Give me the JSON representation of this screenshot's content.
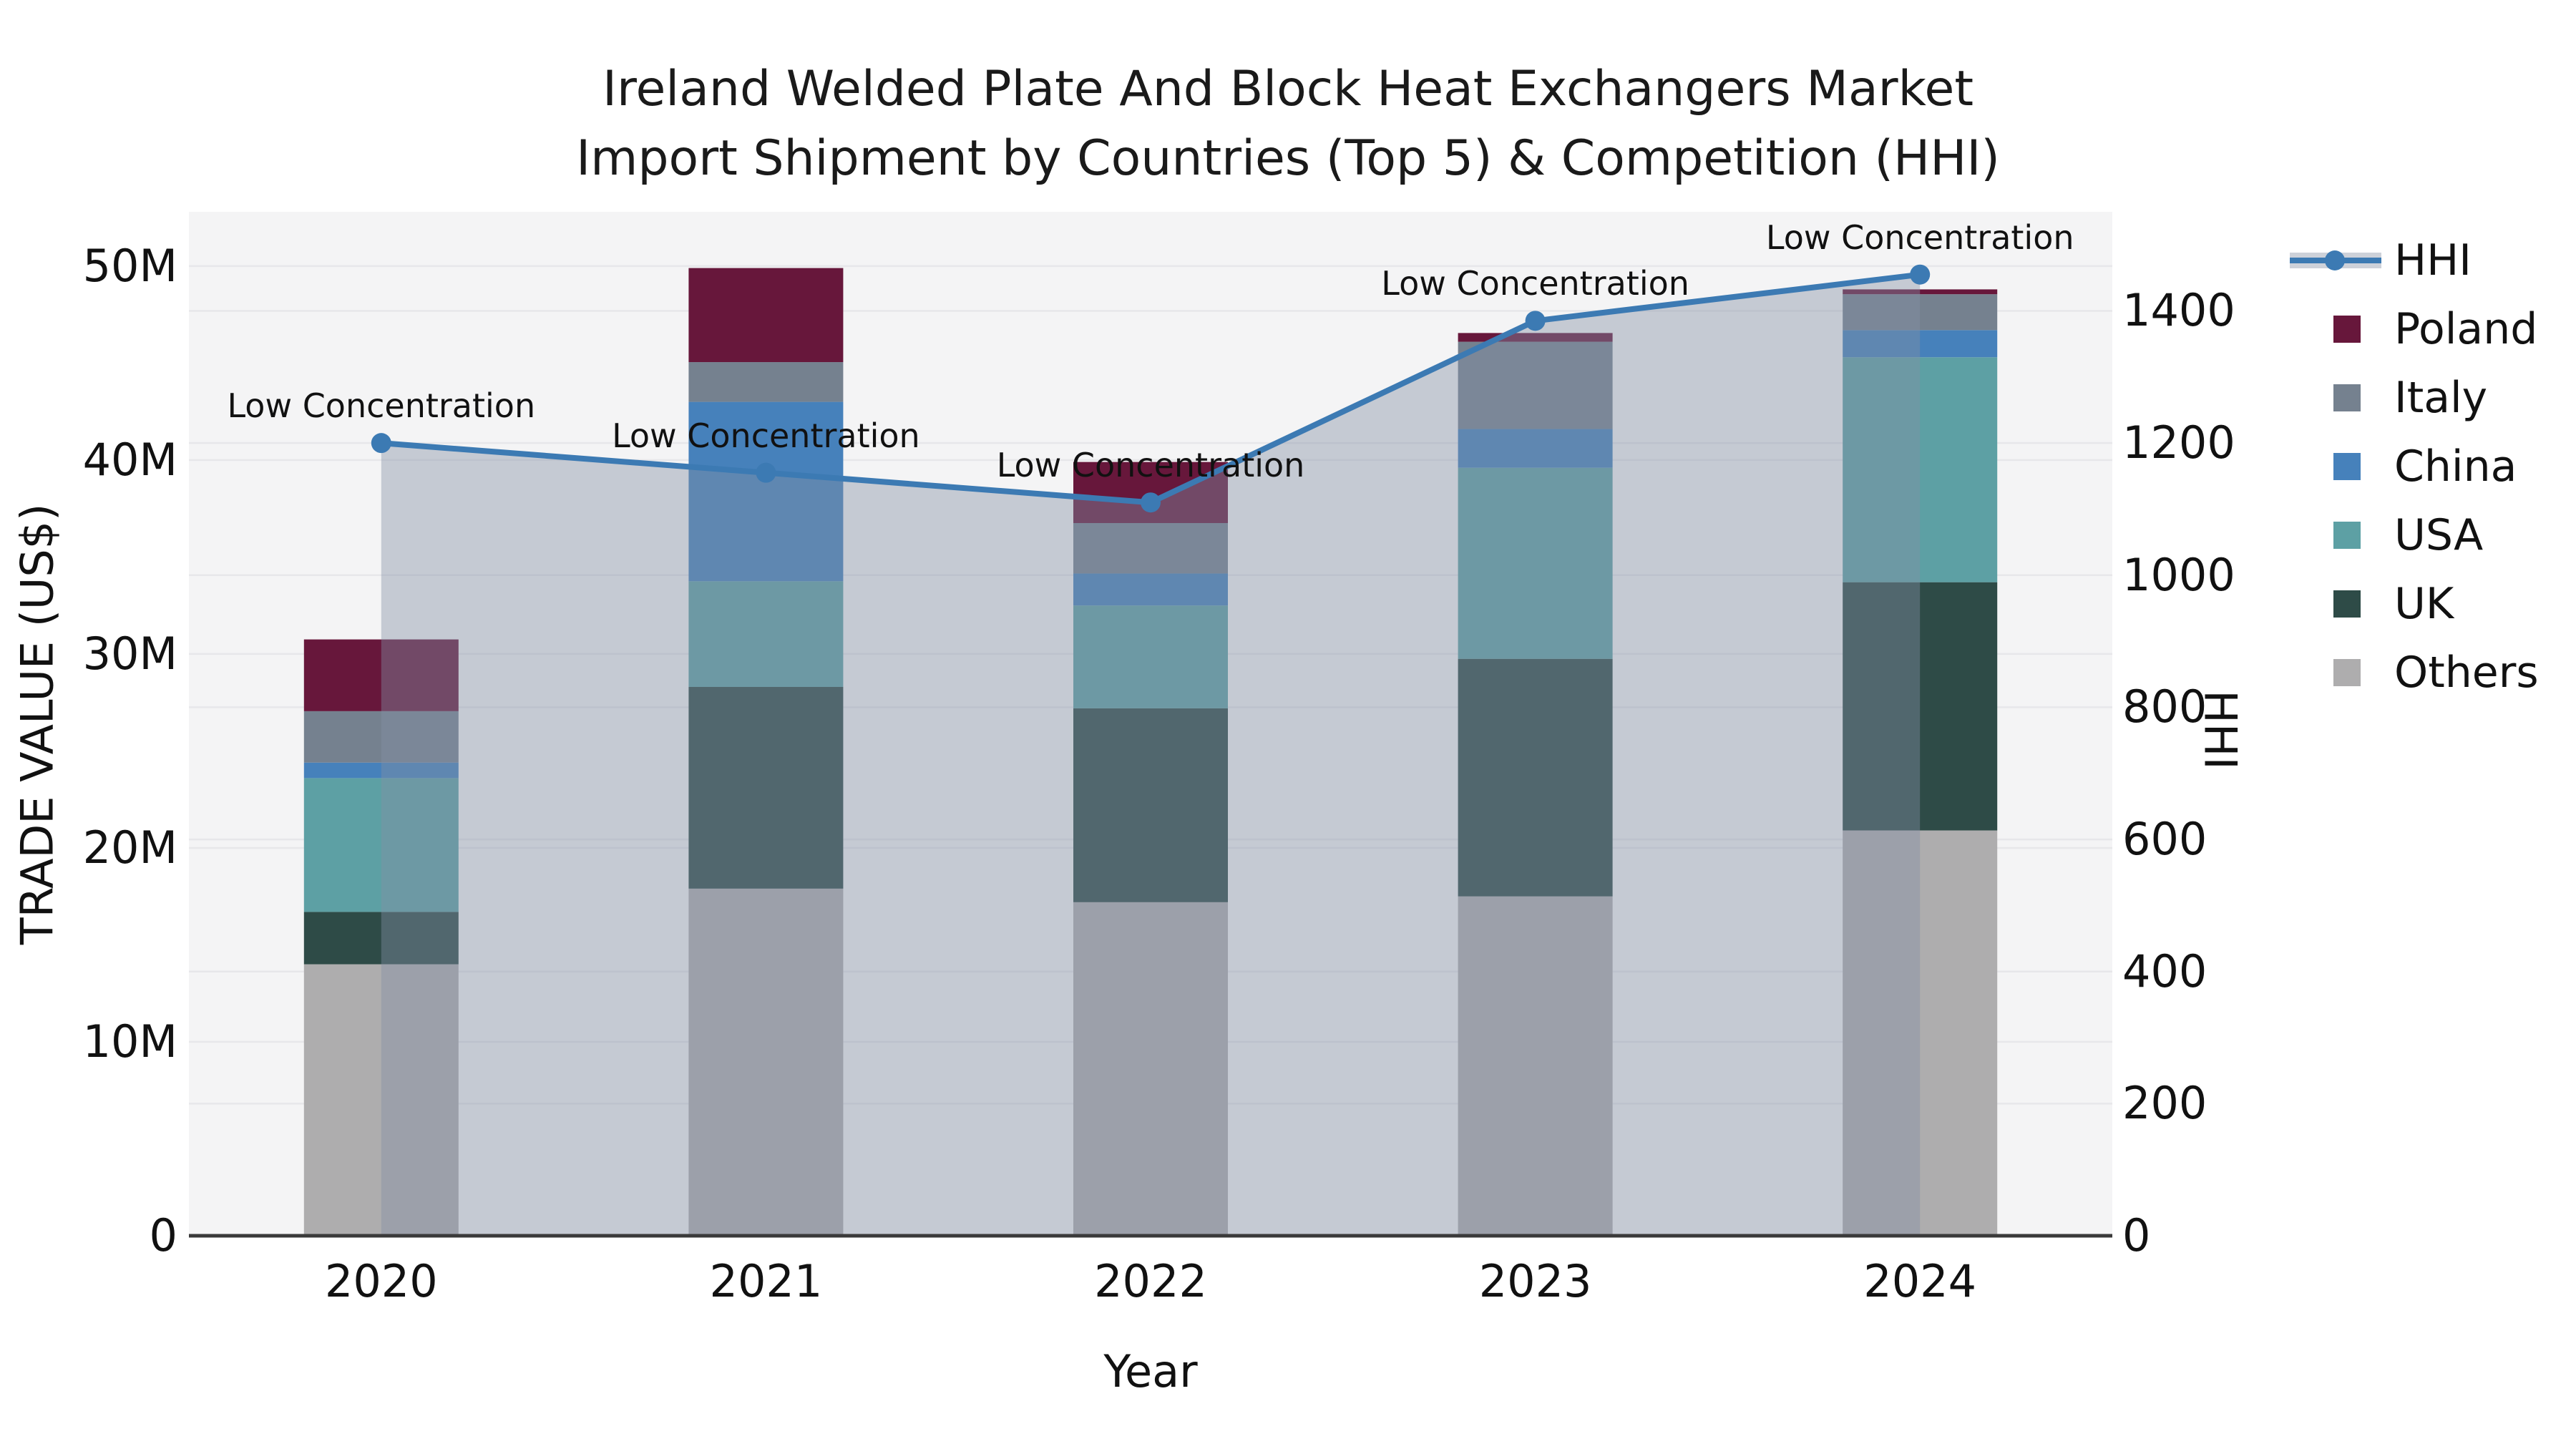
{
  "title": {
    "line1": "Ireland Welded Plate And Block Heat Exchangers Market",
    "line2": "Import Shipment by Countries (Top 5) & Competition (HHI)"
  },
  "colors": {
    "figure_bg": "#ffffff",
    "plot_bg": "#f4f4f5",
    "gridline": "#e7e7ea",
    "axis_line": "#3a3a3a",
    "hhi_line": "#3c7ab3",
    "hhi_area": "rgba(130,143,164,0.42)",
    "legend_band": "#cdd1d9",
    "text": "#111111"
  },
  "legend": {
    "items": [
      {
        "label": "HHI",
        "type": "line",
        "color": "#3c7ab3"
      },
      {
        "label": "Poland",
        "type": "swatch",
        "color": "#67173b"
      },
      {
        "label": "Italy",
        "type": "swatch",
        "color": "#75818f"
      },
      {
        "label": "China",
        "type": "swatch",
        "color": "#4681bb"
      },
      {
        "label": "USA",
        "type": "swatch",
        "color": "#5da0a4"
      },
      {
        "label": "UK",
        "type": "swatch",
        "color": "#2e4b47"
      },
      {
        "label": "Others",
        "type": "swatch",
        "color": "#aeadae"
      }
    ]
  },
  "chart_data": {
    "type": "bar",
    "subtype": "stacked-bars-with-line",
    "title": "Ireland Welded Plate And Block Heat Exchangers Market Import Shipment by Countries (Top 5) & Competition (HHI)",
    "categories": [
      "2020",
      "2021",
      "2022",
      "2023",
      "2024"
    ],
    "xlabel": "Year",
    "series": [
      {
        "name": "Others",
        "color": "#aeadae",
        "values": [
          14.0,
          17.9,
          17.2,
          17.5,
          20.9
        ]
      },
      {
        "name": "UK",
        "color": "#2e4b47",
        "values": [
          2.7,
          10.4,
          10.0,
          12.25,
          12.8
        ]
      },
      {
        "name": "USA",
        "color": "#5da0a4",
        "values": [
          6.9,
          5.45,
          5.3,
          9.85,
          11.6
        ]
      },
      {
        "name": "China",
        "color": "#4681bb",
        "values": [
          0.8,
          9.25,
          1.65,
          2.0,
          1.4
        ]
      },
      {
        "name": "Italy",
        "color": "#75818f",
        "values": [
          2.65,
          2.05,
          2.6,
          4.5,
          1.85
        ]
      },
      {
        "name": "Poland",
        "color": "#67173b",
        "values": [
          3.7,
          4.85,
          3.15,
          0.45,
          0.25
        ]
      }
    ],
    "bar_totals_millions": [
      30.75,
      49.9,
      39.9,
      46.55,
      48.8
    ],
    "line_series": {
      "name": "HHI",
      "color": "#3c7ab3",
      "area_color": "rgba(130,143,164,0.42)",
      "values": [
        1200,
        1155,
        1110,
        1385,
        1455
      ],
      "point_annotation": "Low Concentration"
    },
    "y_left": {
      "label": "TRADE VALUE (US$)",
      "max": 52.8,
      "ticks": [
        {
          "v": 0,
          "label": "0"
        },
        {
          "v": 10,
          "label": "10M"
        },
        {
          "v": 20,
          "label": "20M"
        },
        {
          "v": 30,
          "label": "30M"
        },
        {
          "v": 40,
          "label": "40M"
        },
        {
          "v": 50,
          "label": "50M"
        }
      ]
    },
    "y_right": {
      "label": "HHI",
      "max": 1550,
      "ticks": [
        {
          "v": 0,
          "label": "0"
        },
        {
          "v": 200,
          "label": "200"
        },
        {
          "v": 400,
          "label": "400"
        },
        {
          "v": 600,
          "label": "600"
        },
        {
          "v": 800,
          "label": "800"
        },
        {
          "v": 1000,
          "label": "1000"
        },
        {
          "v": 1200,
          "label": "1200"
        },
        {
          "v": 1400,
          "label": "1400"
        }
      ]
    },
    "grid": true,
    "legend_position": "right"
  }
}
